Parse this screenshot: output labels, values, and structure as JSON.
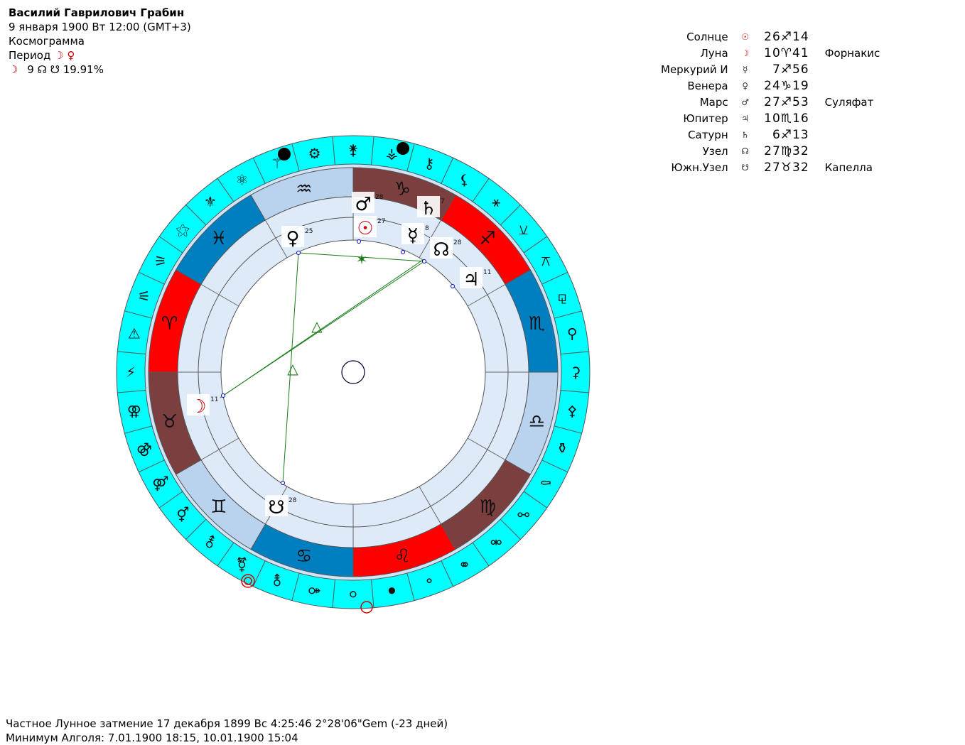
{
  "header": {
    "name": "Василий Гаврилович Грабин",
    "date_line": "9 января 1900  Вт  12:00 (GMT+3)",
    "chart_type": "Космограмма",
    "period_label": "Период",
    "period_symbols": "☽ ♀",
    "moon_line_symbol": "☽",
    "moon_line_number": "9",
    "moon_line_glyphs": "☊ ☋",
    "moon_line_percent": "19.91%"
  },
  "planets": [
    {
      "name": "Солнце",
      "glyph": "☉",
      "glyph_color": "#d00000",
      "position": "26♐14",
      "star": ""
    },
    {
      "name": "Луна",
      "glyph": "☽",
      "glyph_color": "#d00000",
      "position": "10♈41",
      "star": "Форнакис"
    },
    {
      "name": "Меркурий",
      "glyph": "☿",
      "glyph_color": "#333333",
      "retro": "И",
      "position": "7♐56",
      "star": ""
    },
    {
      "name": "Венера",
      "glyph": "♀",
      "glyph_color": "#333333",
      "position": "24♑19",
      "star": ""
    },
    {
      "name": "Марс",
      "glyph": "♂",
      "glyph_color": "#333333",
      "position": "27♐53",
      "star": "Суляфат"
    },
    {
      "name": "Юпитер",
      "glyph": "♃",
      "glyph_color": "#333333",
      "position": "10♏16",
      "star": ""
    },
    {
      "name": "Сатурн",
      "glyph": "♄",
      "glyph_color": "#333333",
      "position": "6♐13",
      "star": ""
    },
    {
      "name": "Узел",
      "glyph": "☊",
      "glyph_color": "#333333",
      "position": "27♍32",
      "star": ""
    },
    {
      "name": "Южн.Узел",
      "glyph": "☋",
      "glyph_color": "#333333",
      "position": "27♉32",
      "star": "Капелла"
    }
  ],
  "wheel": {
    "colors": {
      "outer_ring": "#00ffff",
      "fire": "#ff0000",
      "earth": "#7b3f3f",
      "air": "#b9d3ef",
      "water": "#007fc0",
      "inner_ring": "#deeaf7",
      "aspect": "#1a7a1a",
      "sun": "#d00000"
    },
    "zodiac": [
      {
        "glyph": "♑",
        "element": "earth"
      },
      {
        "glyph": "♐",
        "element": "fire"
      },
      {
        "glyph": "♏",
        "element": "water"
      },
      {
        "glyph": "♎",
        "element": "air"
      },
      {
        "glyph": "♍",
        "element": "earth"
      },
      {
        "glyph": "♌",
        "element": "fire"
      },
      {
        "glyph": "♋",
        "element": "water"
      },
      {
        "glyph": "♊",
        "element": "air"
      },
      {
        "glyph": "♉",
        "element": "earth"
      },
      {
        "glyph": "♈",
        "element": "fire"
      },
      {
        "glyph": "♓",
        "element": "water"
      },
      {
        "glyph": "♒",
        "element": "air"
      }
    ],
    "outer_glyphs": [
      "⚵",
      "⚶",
      "⚷",
      "⚸",
      "⚹",
      "⚺",
      "⚻",
      "⚼",
      "⚲",
      "⚳",
      "⚴",
      "⚱",
      "⚰",
      "⚯",
      "⚮",
      "⚭",
      "⚬",
      "⚫",
      "⚪",
      "⚩",
      "⚨",
      "⚧",
      "⚦",
      "⚥",
      "⚤",
      "⚣",
      "⚢",
      "⚡",
      "⚠",
      "⚟",
      "⚞",
      "⚝",
      "⚜",
      "⚛",
      "⚚",
      "⚙"
    ],
    "planet_markers": [
      {
        "glyph": "♂",
        "degree": "28",
        "color": "#000000"
      },
      {
        "glyph": "☉",
        "degree": "27",
        "color": "#d00000"
      },
      {
        "glyph": "♄",
        "degree": "7",
        "color": "#000000"
      },
      {
        "glyph": "☿",
        "degree": "8",
        "color": "#000000"
      },
      {
        "glyph": "♀",
        "degree": "25",
        "color": "#000000"
      },
      {
        "glyph": "☊",
        "degree": "28",
        "color": "#000000"
      },
      {
        "glyph": "♃",
        "degree": "11",
        "color": "#000000"
      },
      {
        "glyph": "☽",
        "degree": "11",
        "color": "#d00000"
      },
      {
        "glyph": "☋",
        "degree": "28",
        "color": "#000000"
      }
    ],
    "aspect_symbols": [
      "✶",
      "△",
      "△"
    ]
  },
  "footer": {
    "eclipse": "Частное Лунное затмение 17 декабря 1899 Вс  4:25:46  2°28'06\"Gem (-23 дней)",
    "algol": "Минимум Алголя: 7.01.1900 18:15,  10.01.1900 15:04"
  }
}
